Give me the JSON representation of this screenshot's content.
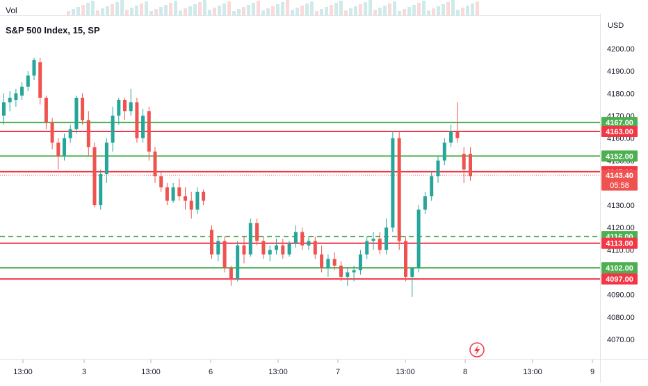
{
  "legend": {
    "title": "S&P 500 Index, 15, SP",
    "volume_label": "Vol"
  },
  "price_axis": {
    "currency": "USD",
    "tick_labels": [
      "4200.00",
      "4190.00",
      "4180.00",
      "4170.00",
      "4160.00",
      "4150.00",
      "4140.00",
      "4130.00",
      "4120.00",
      "4110.00",
      "4100.00",
      "4090.00",
      "4080.00",
      "4070.00"
    ]
  },
  "time_axis": {
    "tick_labels": [
      "13:00",
      "3",
      "13:00",
      "6",
      "13:00",
      "7",
      "13:00",
      "8",
      "13:00",
      "9"
    ]
  },
  "colors": {
    "up": "#26a69a",
    "down": "#ef5350",
    "support": "#4caf50",
    "resistance": "#f23645",
    "grid": "#f0f3fa"
  },
  "icons": {
    "flash": "flash-icon"
  },
  "chart_data": {
    "type": "candlestick",
    "title": "S&P 500 Index, 15, SP",
    "ylim": [
      4061,
      4209
    ],
    "ticks": [
      4200,
      4190,
      4180,
      4170,
      4160,
      4150,
      4140,
      4130,
      4120,
      4110,
      4100,
      4090,
      4080,
      4070
    ],
    "horizontal_levels": [
      {
        "label": "4167.00",
        "value": 4167.0,
        "color": "green",
        "style": "solid"
      },
      {
        "label": "4163.00",
        "value": 4163.0,
        "color": "red",
        "style": "solid"
      },
      {
        "label": "4152.00",
        "value": 4152.0,
        "color": "green",
        "style": "solid"
      },
      {
        "label": "4145.00",
        "value": 4145.0,
        "color": "red",
        "style": "solid"
      },
      {
        "label": "4116.00",
        "value": 4116.0,
        "color": "green",
        "style": "dashed"
      },
      {
        "label": "4113.00",
        "value": 4113.0,
        "color": "red",
        "style": "solid"
      },
      {
        "label": "4102.00",
        "value": 4102.0,
        "color": "green",
        "style": "solid"
      },
      {
        "label": "4097.00",
        "value": 4097.0,
        "color": "red",
        "style": "solid"
      }
    ],
    "last_price": {
      "label": "4143.40",
      "value": 4143.4,
      "countdown": "05:58"
    },
    "candles_ohlc": [
      [
        4170,
        4180,
        4166,
        4176
      ],
      [
        4176,
        4181,
        4172,
        4178
      ],
      [
        4177,
        4182,
        4174,
        4180
      ],
      [
        4179,
        4185,
        4177,
        4183
      ],
      [
        4183,
        4190,
        4181,
        4188
      ],
      [
        4188,
        4196,
        4186,
        4195
      ],
      [
        4194,
        4196,
        4175,
        4178
      ],
      [
        4178,
        4179,
        4164,
        4167
      ],
      [
        4167,
        4169,
        4155,
        4158
      ],
      [
        4158,
        4160,
        4146,
        4152
      ],
      [
        4152,
        4162,
        4150,
        4160
      ],
      [
        4160,
        4166,
        4158,
        4164
      ],
      [
        4164,
        4179,
        4162,
        4178
      ],
      [
        4178,
        4180,
        4166,
        4168
      ],
      [
        4168,
        4172,
        4152,
        4156
      ],
      [
        4156,
        4158,
        4129,
        4130
      ],
      [
        4130,
        4146,
        4128,
        4144
      ],
      [
        4144,
        4160,
        4140,
        4158
      ],
      [
        4158,
        4174,
        4154,
        4170
      ],
      [
        4170,
        4178,
        4166,
        4177
      ],
      [
        4177,
        4178,
        4168,
        4172
      ],
      [
        4172,
        4182,
        4170,
        4176
      ],
      [
        4176,
        4178,
        4158,
        4160
      ],
      [
        4160,
        4173,
        4158,
        4170
      ],
      [
        4172,
        4174,
        4150,
        4154
      ],
      [
        4154,
        4156,
        4140,
        4143
      ],
      [
        4143,
        4145,
        4136,
        4138
      ],
      [
        4138,
        4140,
        4130,
        4132
      ],
      [
        4132,
        4140,
        4131,
        4138
      ],
      [
        4138,
        4142,
        4132,
        4134
      ],
      [
        4134,
        4138,
        4128,
        4132
      ],
      [
        4132,
        4136,
        4124,
        4128
      ],
      [
        4128,
        4138,
        4126,
        4136
      ],
      [
        4136,
        4137,
        4130,
        4132
      ]
    ],
    "candles_ohlc_later": [
      [
        4119,
        4121,
        4106,
        4108
      ],
      [
        4108,
        4116,
        4105,
        4114
      ],
      [
        4114,
        4116,
        4100,
        4102
      ],
      [
        4102,
        4103,
        4094,
        4097
      ],
      [
        4097,
        4114,
        4096,
        4112
      ],
      [
        4112,
        4116,
        4104,
        4108
      ],
      [
        4108,
        4124,
        4107,
        4122
      ],
      [
        4122,
        4124,
        4112,
        4114
      ],
      [
        4114,
        4116,
        4106,
        4108
      ],
      [
        4108,
        4112,
        4105,
        4110
      ],
      [
        4110,
        4115,
        4108,
        4112
      ],
      [
        4112,
        4115,
        4106,
        4108
      ],
      [
        4108,
        4114,
        4107,
        4113
      ],
      [
        4113,
        4121,
        4111,
        4118
      ],
      [
        4118,
        4120,
        4110,
        4112
      ],
      [
        4112,
        4116,
        4110,
        4114
      ],
      [
        4114,
        4116,
        4106,
        4108
      ],
      [
        4108,
        4112,
        4100,
        4102
      ],
      [
        4102,
        4108,
        4098,
        4106
      ],
      [
        4106,
        4109,
        4101,
        4103
      ],
      [
        4103,
        4105,
        4096,
        4098
      ],
      [
        4098,
        4102,
        4094,
        4100
      ],
      [
        4100,
        4103,
        4096,
        4101
      ],
      [
        4101,
        4110,
        4099,
        4108
      ],
      [
        4108,
        4116,
        4106,
        4114
      ],
      [
        4114,
        4118,
        4110,
        4115
      ],
      [
        4115,
        4118,
        4108,
        4110
      ],
      [
        4110,
        4124,
        4108,
        4120
      ],
      [
        4120,
        4163,
        4118,
        4160
      ],
      [
        4160,
        4163,
        4110,
        4114
      ],
      [
        4114,
        4116,
        4096,
        4098
      ],
      [
        4098,
        4100,
        4089,
        4102
      ],
      [
        4102,
        4130,
        4100,
        4128
      ],
      [
        4128,
        4136,
        4126,
        4134
      ],
      [
        4134,
        4145,
        4132,
        4143
      ],
      [
        4143,
        4152,
        4140,
        4150
      ],
      [
        4150,
        4160,
        4148,
        4158
      ],
      [
        4158,
        4166,
        4156,
        4163
      ],
      [
        4163,
        4176,
        4158,
        4160
      ],
      [
        4153,
        4156,
        4140,
        4146
      ],
      [
        4153,
        4156,
        4141,
        4143
      ]
    ]
  }
}
